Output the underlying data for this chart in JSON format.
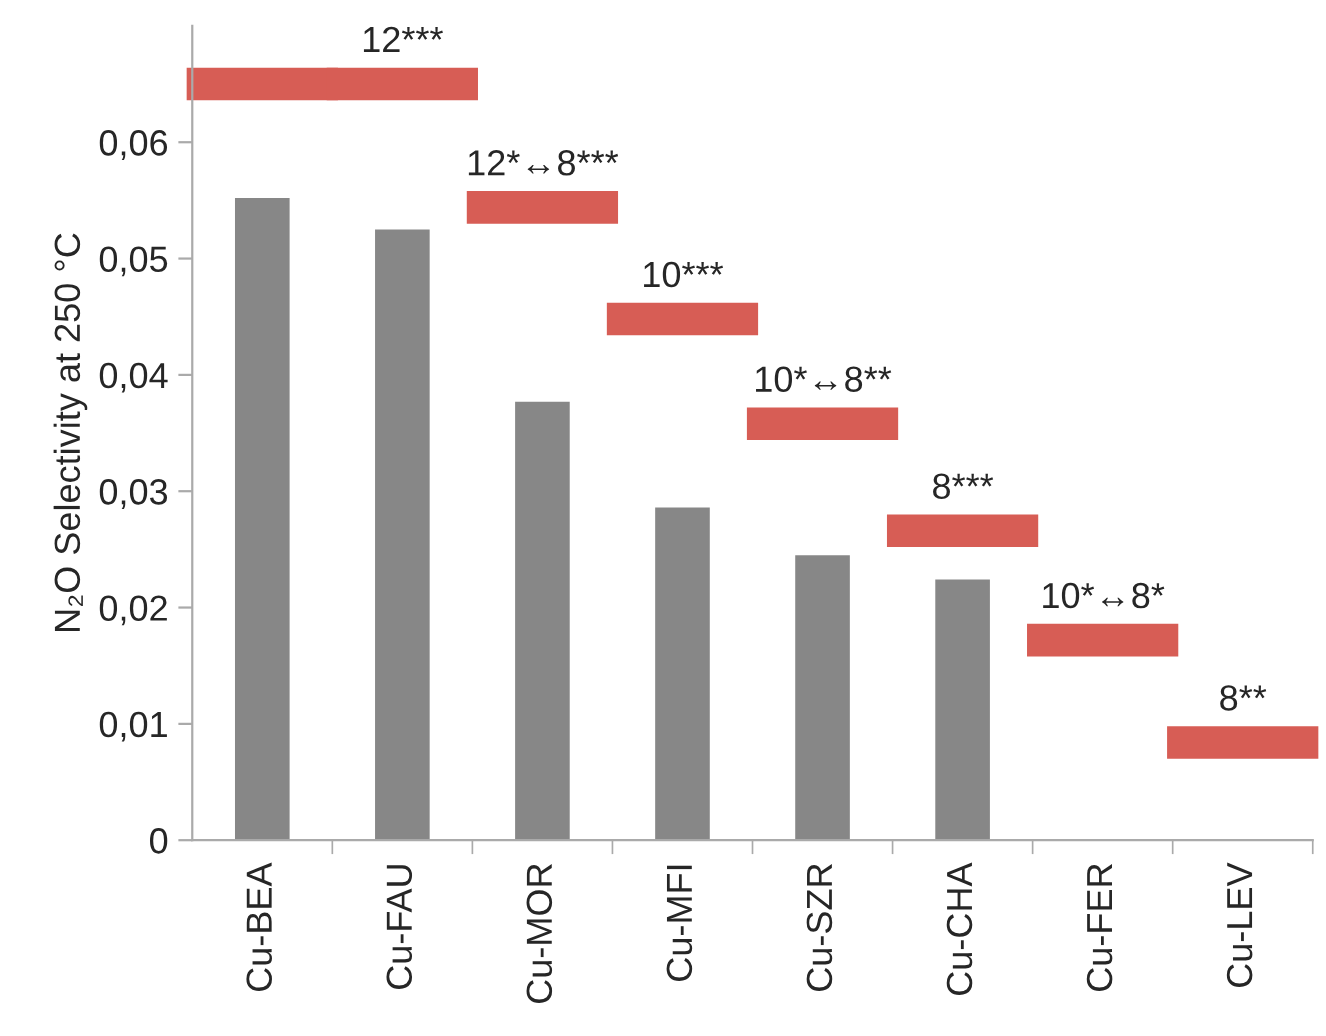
{
  "chart_data": {
    "type": "bar",
    "ylabel": "N₂O Selectivity at 250 °C",
    "categories": [
      "Cu-BEA",
      "Cu-FAU",
      "Cu-MOR",
      "Cu-MFI",
      "Cu-SZR",
      "Cu-CHA",
      "Cu-FER",
      "Cu-LEV"
    ],
    "series": [
      {
        "color": "#878787",
        "values": [
          0.0552,
          0.0525,
          0.0377,
          0.0286,
          0.0245,
          0.0224,
          null,
          null
        ]
      },
      {
        "color": "#d75d55",
        "base": [
          0.0636,
          0.0636,
          0.053,
          0.0434,
          0.0344,
          0.0252,
          0.0158,
          0.007
        ],
        "values": [
          0.0028,
          0.0028,
          0.0028,
          0.0028,
          0.0028,
          0.0028,
          0.0028,
          0.0028
        ]
      }
    ],
    "annotations": [
      {
        "text": "12***",
        "x": "Cu-FAU",
        "y": 0.0664
      },
      {
        "text": "12*↔8***",
        "x": "Cu-MOR",
        "y": 0.0558
      },
      {
        "text": "10***",
        "x": "Cu-MFI",
        "y": 0.0462
      },
      {
        "text": "10*↔8**",
        "x": "Cu-SZR",
        "y": 0.0372
      },
      {
        "text": "8***",
        "x": "Cu-CHA",
        "y": 0.028
      },
      {
        "text": "10*↔8*",
        "x": "Cu-FER",
        "y": 0.0186
      },
      {
        "text": "8**",
        "x": "Cu-LEV",
        "y": 0.0098
      }
    ],
    "ylim": [
      0,
      0.07
    ],
    "yticks": [
      0,
      {
        "value": 0.01,
        "label": "0,01"
      },
      {
        "value": 0.02,
        "label": "0,02"
      },
      {
        "value": 0.03,
        "label": "0,03"
      },
      {
        "value": 0.04,
        "label": "0,04"
      },
      {
        "value": 0.05,
        "label": "0,05"
      },
      {
        "value": 0.06,
        "label": "0,06"
      }
    ],
    "grid": false,
    "legend": false
  }
}
